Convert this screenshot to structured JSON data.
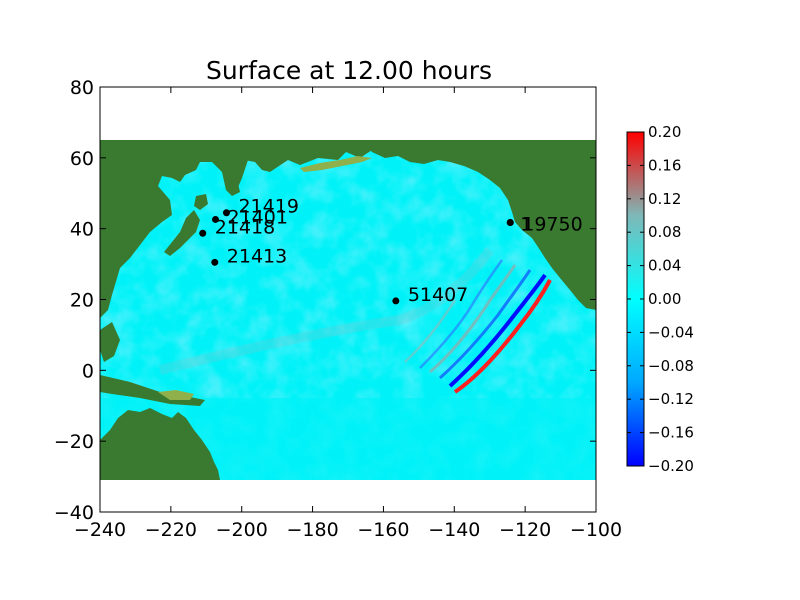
{
  "title": "Surface at 12.00 hours",
  "axes": {
    "xlim": [
      -240,
      -100
    ],
    "ylim": [
      -40,
      80
    ],
    "xticks": [
      -240,
      -220,
      -200,
      -180,
      -160,
      -140,
      -120,
      -100
    ],
    "yticks": [
      80,
      60,
      40,
      20,
      0,
      -20,
      -40
    ],
    "xtick_labels": [
      "−240",
      "−220",
      "−200",
      "−180",
      "−160",
      "−140",
      "−120",
      "−100"
    ],
    "ytick_labels": [
      "80",
      "60",
      "40",
      "20",
      "0",
      "−20",
      "−40"
    ]
  },
  "colorbar": {
    "vmin": -0.2,
    "vmax": 0.2,
    "tick_labels": [
      "0.20",
      "0.16",
      "0.12",
      "0.08",
      "0.04",
      "0.00",
      "−0.04",
      "−0.08",
      "−0.12",
      "−0.16",
      "−0.20"
    ],
    "colors": [
      "#0000ff",
      "#00a8ff",
      "#00ffff",
      "#7fb8b8",
      "#ff0000"
    ]
  },
  "colors": {
    "land": "#3a7a30",
    "ocean_base": "#00e8f0",
    "ocean_domain_bg": "#00ffff",
    "coast_highlight": "#8fb04a"
  },
  "gauges": [
    {
      "id": "21419",
      "lon": -204.3,
      "lat": 44.5
    },
    {
      "id": "21401",
      "lon": -207.4,
      "lat": 42.6
    },
    {
      "id": "21418",
      "lon": -211.0,
      "lat": 38.7
    },
    {
      "id": "21413",
      "lon": -207.6,
      "lat": 30.5
    },
    {
      "id": "51407",
      "lon": -156.5,
      "lat": 19.6
    },
    {
      "id": "1",
      "lon": -124.2,
      "lat": 41.75
    },
    {
      "id": "19750",
      "lon": -124.2,
      "lat": 41.75
    }
  ],
  "chart_data": {
    "type": "heatmap",
    "title": "Surface at 12.00 hours",
    "xlim": [
      -240,
      -100
    ],
    "ylim": [
      -40,
      80
    ],
    "colorbar_range": [
      -0.2,
      0.2
    ],
    "points": [
      {
        "label": "21419",
        "x": -204.3,
        "y": 44.5
      },
      {
        "label": "21401",
        "x": -207.4,
        "y": 42.6
      },
      {
        "label": "21418",
        "x": -211.0,
        "y": 38.7
      },
      {
        "label": "21413",
        "x": -207.6,
        "y": 30.5
      },
      {
        "label": "51407",
        "x": -156.5,
        "y": 19.6
      },
      {
        "label": "1",
        "x": -124.2,
        "y": 41.75
      },
      {
        "label": "19750",
        "x": -124.2,
        "y": 41.75
      }
    ]
  }
}
